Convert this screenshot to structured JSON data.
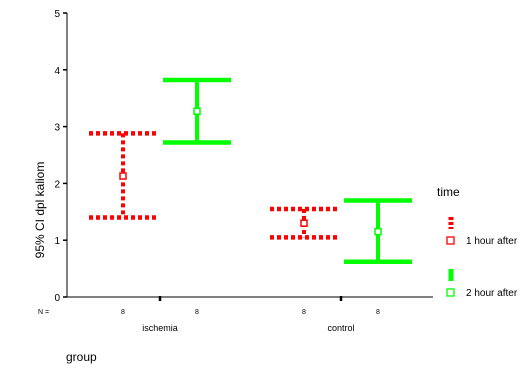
{
  "chart_data": {
    "type": "errorbar",
    "ylabel": "95% CI dpl kaliom",
    "xlabel": "group",
    "ylim": [
      0,
      5
    ],
    "yticks": [
      "0",
      "1",
      "2",
      "3",
      "4",
      "5"
    ],
    "n_label": "N =",
    "categories": [
      "ischemia",
      "control"
    ],
    "grid": false,
    "legend_position": "right",
    "legend_title": "time",
    "series": [
      {
        "name": "1 hour after",
        "color": "#ff0000",
        "line_style": "dotted",
        "marker": "hollow-square",
        "n": [
          "8",
          "8"
        ],
        "mean": [
          2.13,
          1.3
        ],
        "lower": [
          1.4,
          1.05
        ],
        "upper": [
          2.88,
          1.55
        ]
      },
      {
        "name": "2 hour after",
        "color": "#00ff00",
        "line_style": "solid",
        "marker": "hollow-square",
        "n": [
          "8",
          "8"
        ],
        "mean": [
          3.27,
          1.15
        ],
        "lower": [
          2.72,
          0.62
        ],
        "upper": [
          3.82,
          1.7
        ]
      }
    ]
  }
}
